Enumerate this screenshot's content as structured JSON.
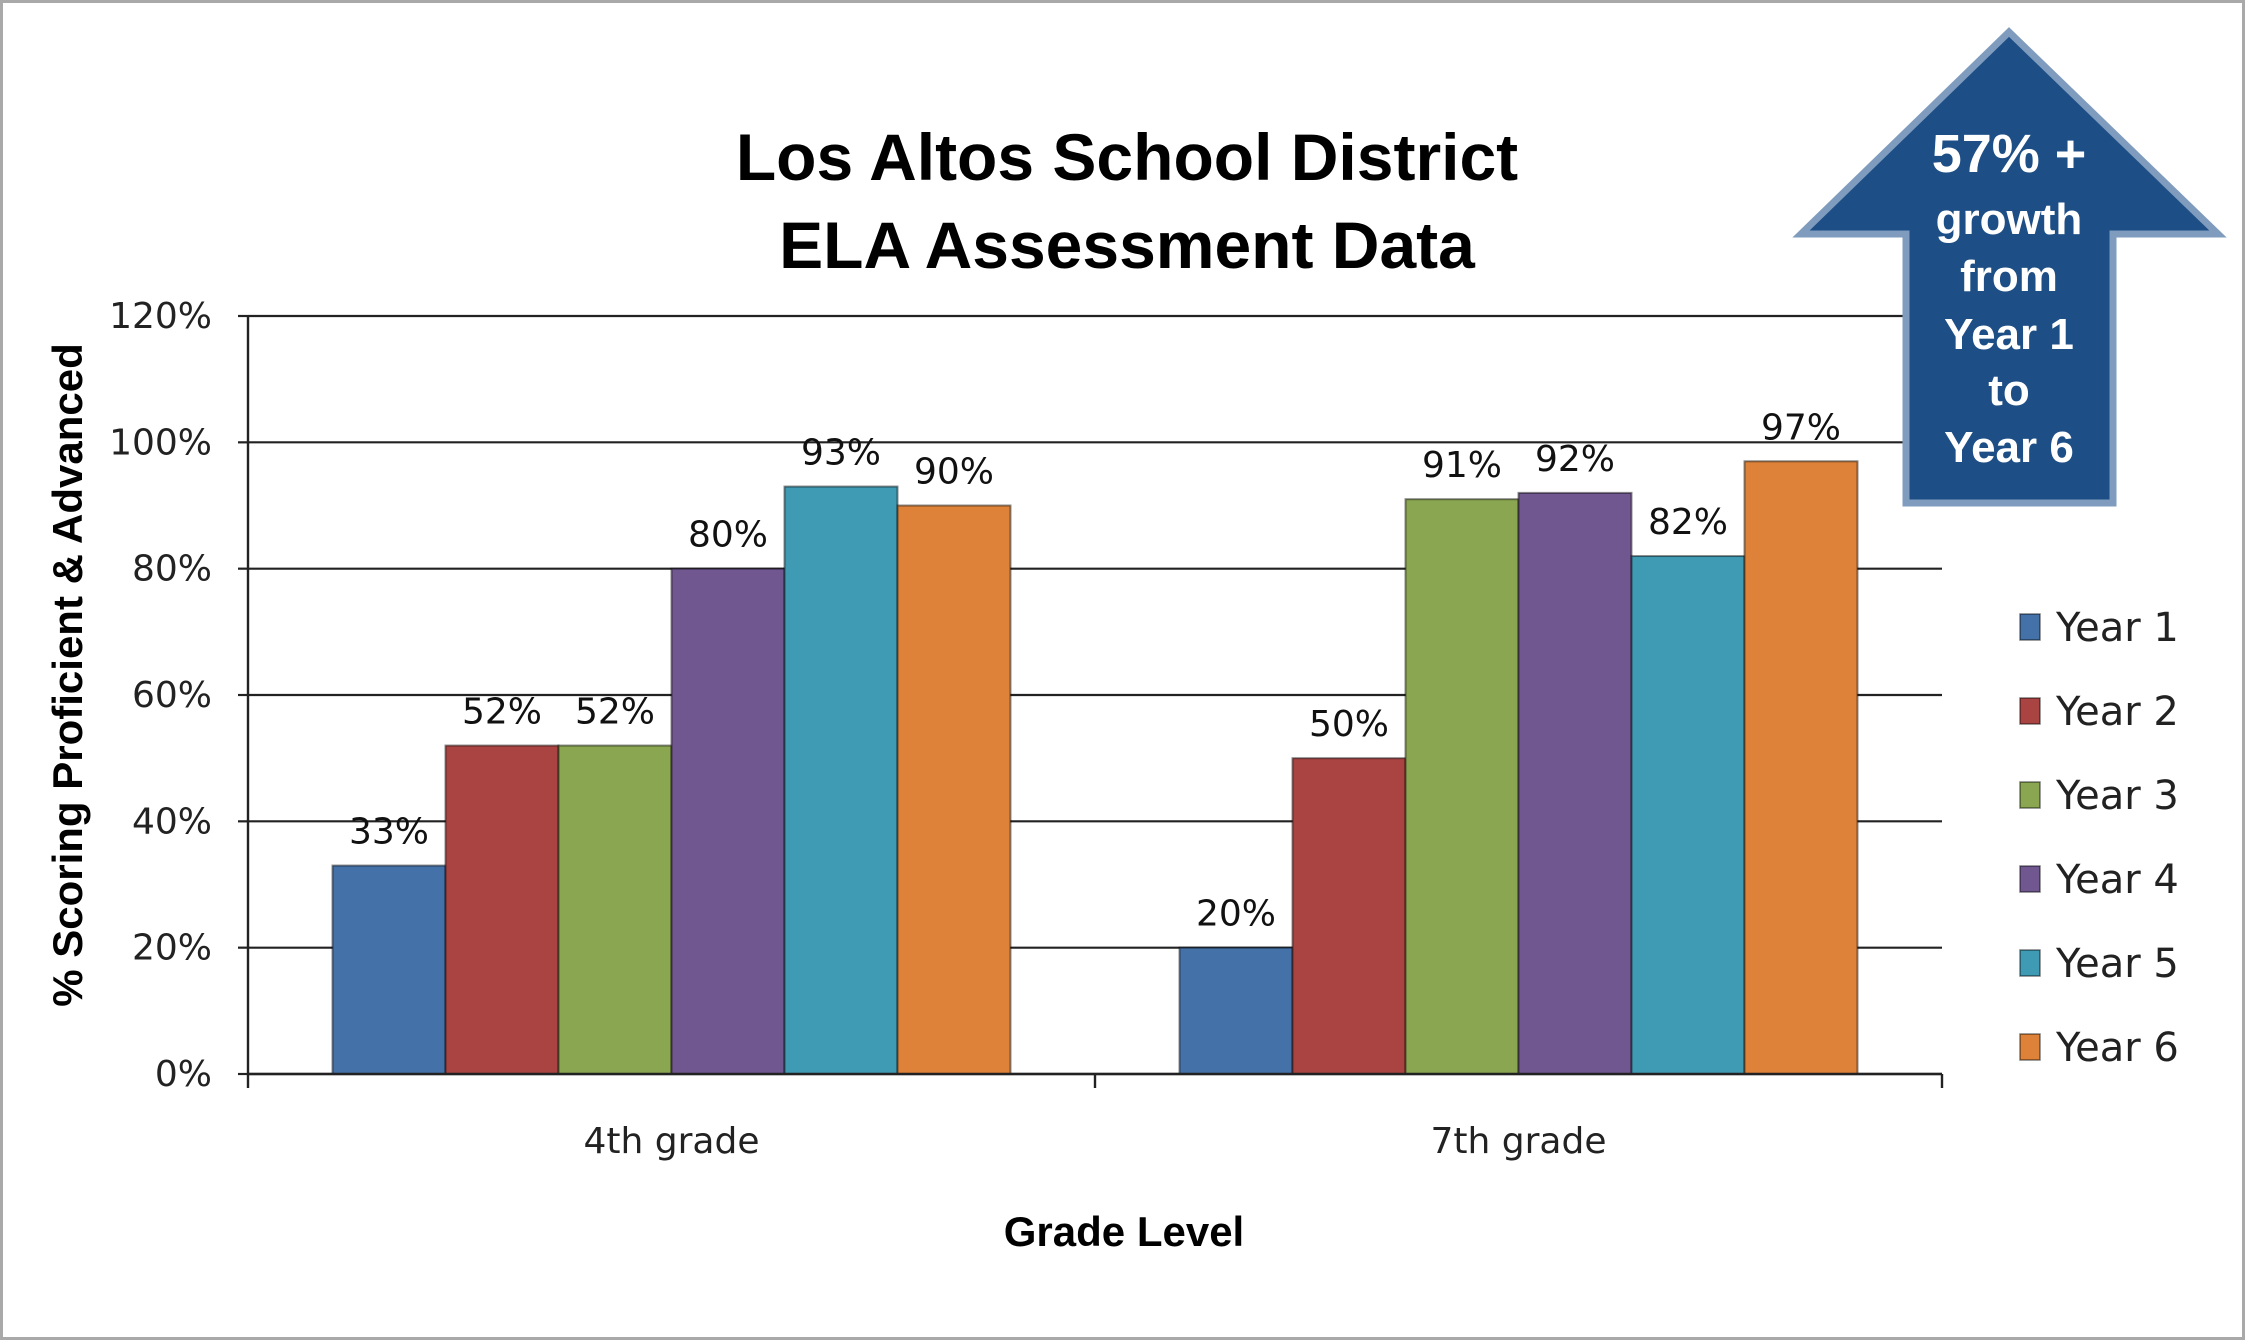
{
  "chart_data": {
    "type": "bar",
    "title": [
      "Los Altos School District",
      "ELA Assessment Data"
    ],
    "xlabel": "Grade Level",
    "ylabel": "% Scoring Proficient & Advanced",
    "ylim": [
      0,
      120
    ],
    "yticks": [
      "0%",
      "20%",
      "40%",
      "60%",
      "80%",
      "100%",
      "120%"
    ],
    "grid": true,
    "legend_position": "right",
    "categories": [
      "4th grade",
      "7th grade"
    ],
    "series": [
      {
        "name": "Year 1",
        "values": [
          33,
          20
        ],
        "labels": [
          "33%",
          "20%"
        ],
        "color": "#4472a8"
      },
      {
        "name": "Year 2",
        "values": [
          52,
          50
        ],
        "labels": [
          "52%",
          "50%"
        ],
        "color": "#a94442"
      },
      {
        "name": "Year 3",
        "values": [
          52,
          91
        ],
        "labels": [
          "52%",
          "91%"
        ],
        "color": "#8aa650"
      },
      {
        "name": "Year 4",
        "values": [
          80,
          92
        ],
        "labels": [
          "80%",
          "92%"
        ],
        "color": "#71578f"
      },
      {
        "name": "Year 5",
        "values": [
          93,
          82
        ],
        "labels": [
          "93%",
          "82%"
        ],
        "color": "#3f9ab3"
      },
      {
        "name": "Year 6",
        "values": [
          90,
          97
        ],
        "labels": [
          "90%",
          "97%"
        ],
        "color": "#dd8238"
      }
    ],
    "annotation": {
      "lines": [
        "57% +",
        "growth",
        "from",
        "Year 1",
        "to",
        "Year 6"
      ],
      "color": "#1d4e85",
      "shape": "up-arrow"
    }
  }
}
